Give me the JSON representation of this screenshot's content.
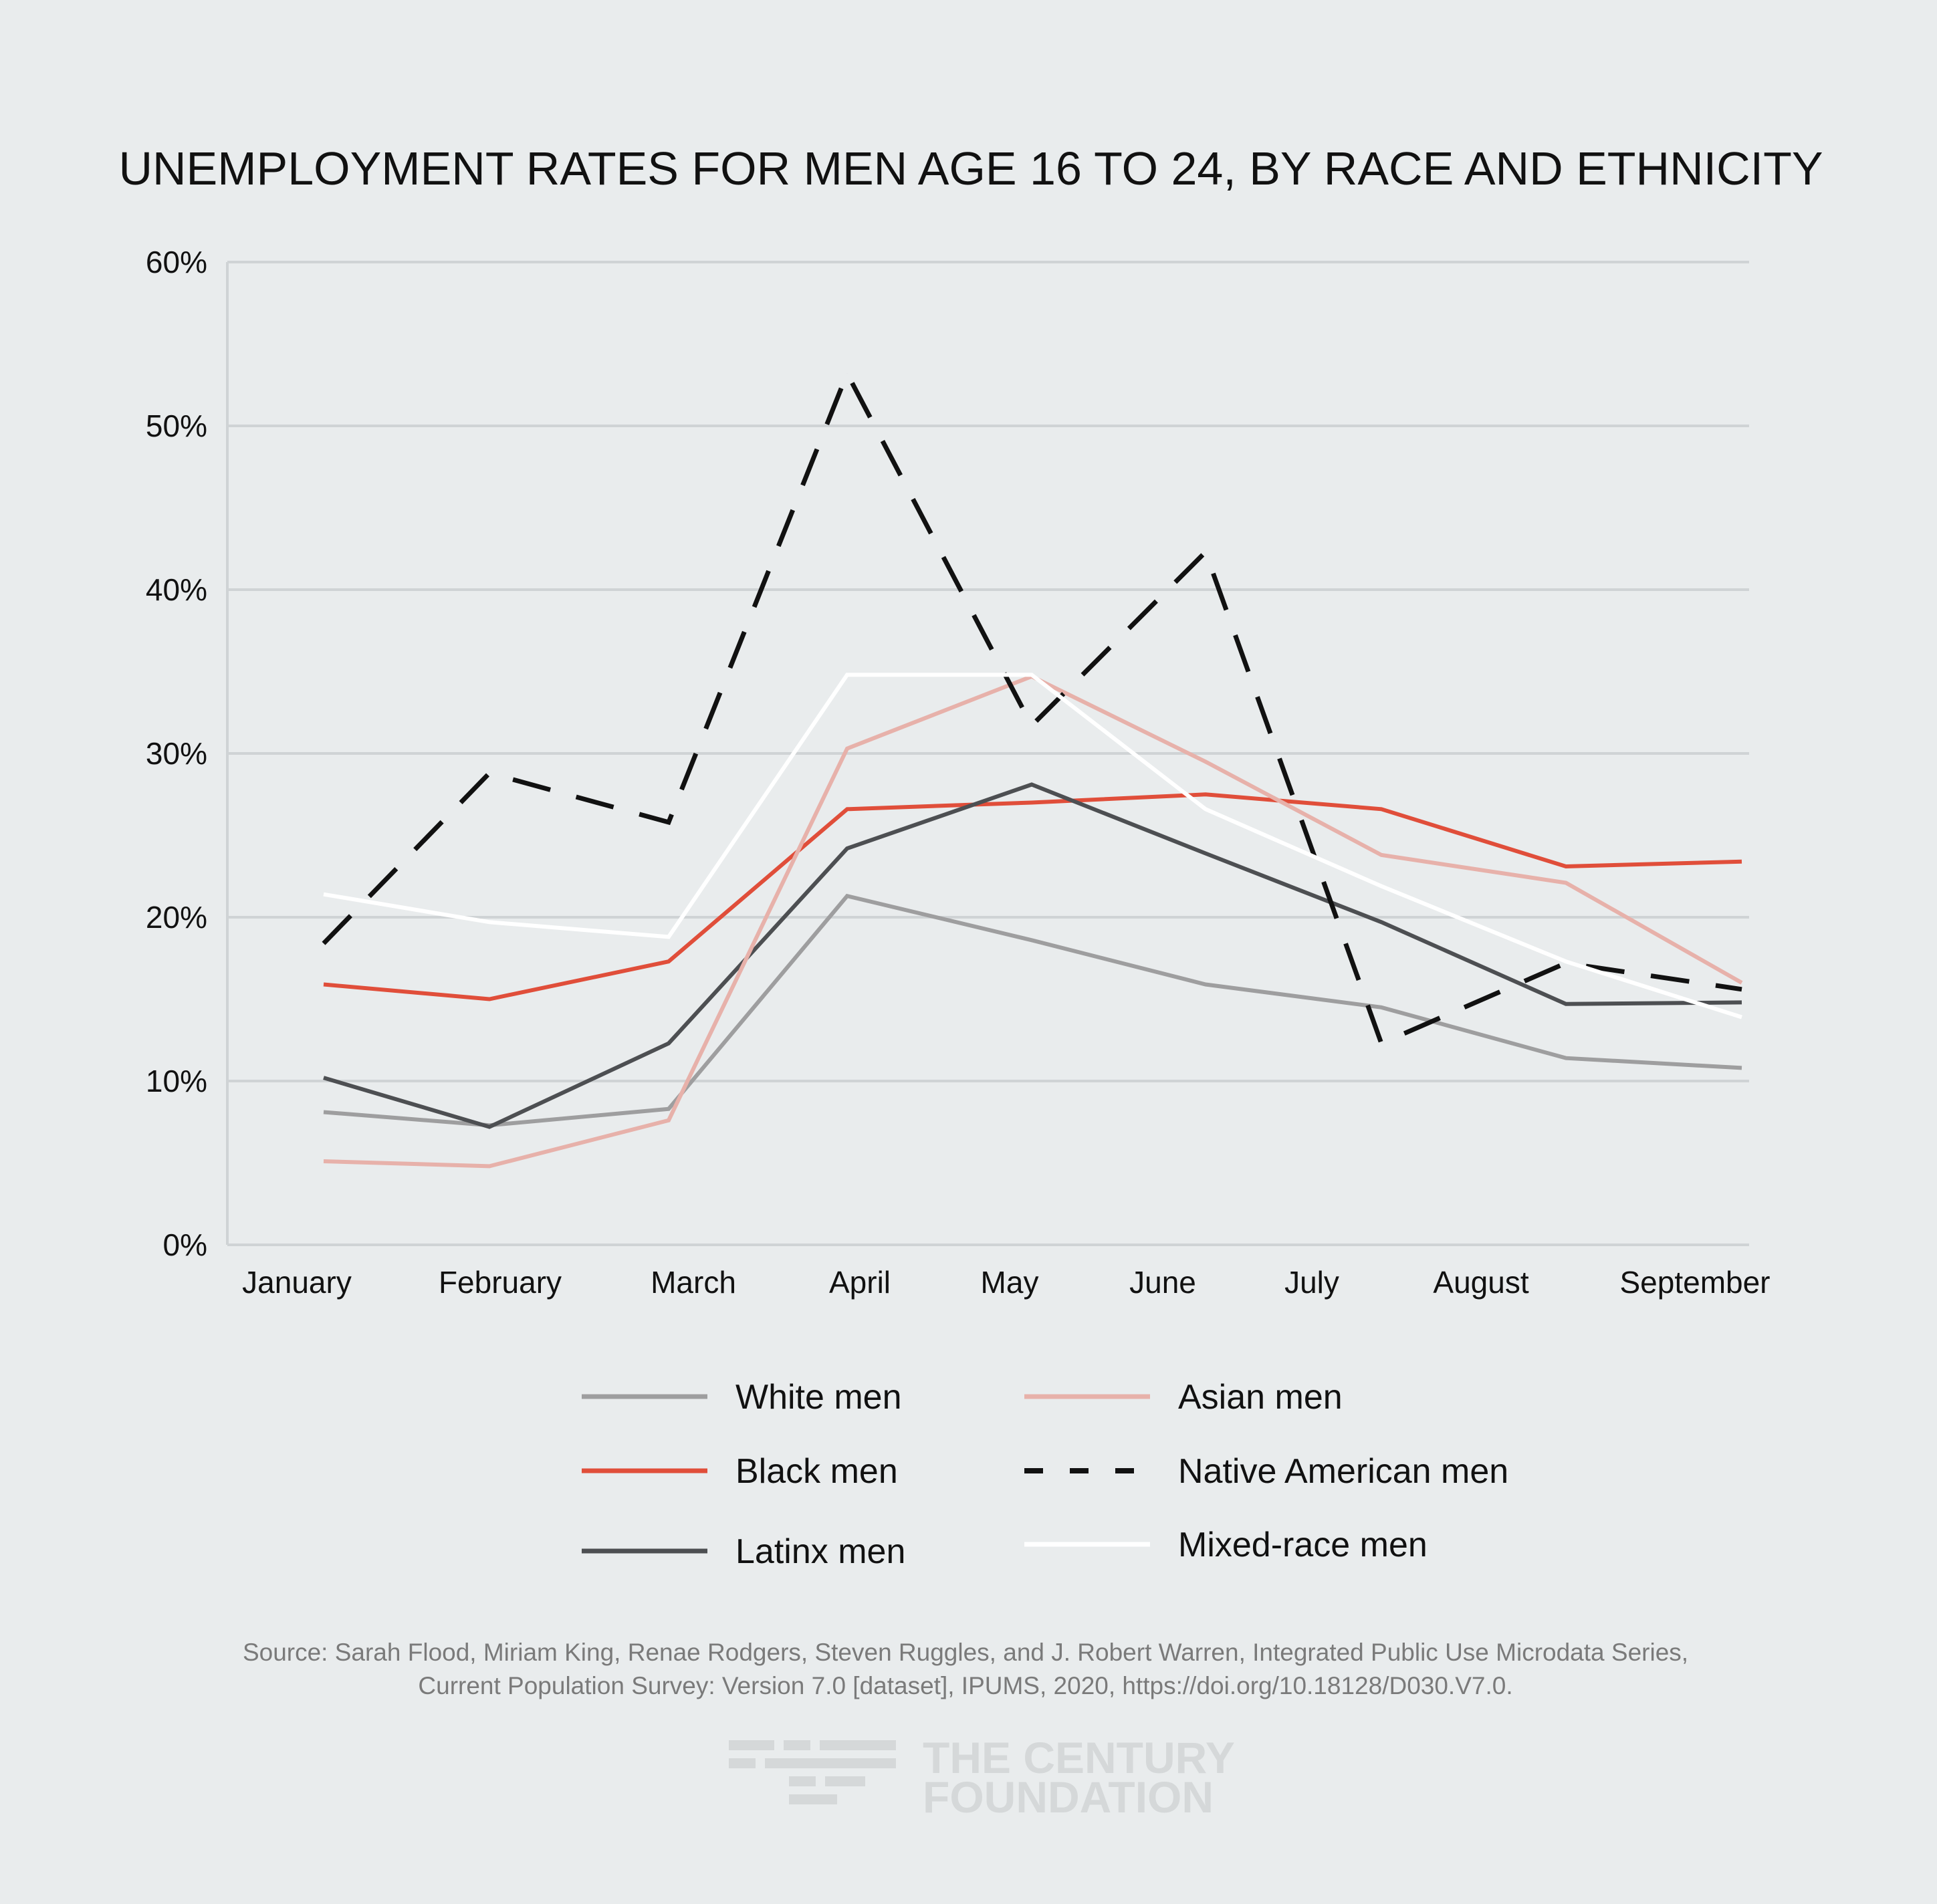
{
  "chart_data": {
    "type": "line",
    "title": "UNEMPLOYMENT RATES FOR MEN AGE 16 TO 24, BY RACE AND ETHNICITY",
    "xlabel": "",
    "ylabel": "",
    "categories": [
      "January",
      "February",
      "March",
      "April",
      "May",
      "June",
      "July",
      "August",
      "September"
    ],
    "y_ticks": [
      0,
      10,
      20,
      30,
      40,
      50,
      60
    ],
    "y_tick_labels": [
      "0%",
      "10%",
      "20%",
      "30%",
      "40%",
      "50%",
      "60%"
    ],
    "ylim": [
      0,
      60
    ],
    "grid": true,
    "legend_position": "bottom",
    "series": [
      {
        "name": "White men",
        "color": "#9e9e9f",
        "dash": false,
        "values": [
          8.1,
          7.3,
          8.3,
          21.3,
          18.6,
          15.9,
          14.5,
          11.4,
          10.8
        ]
      },
      {
        "name": "Black men",
        "color": "#e04e3a",
        "dash": false,
        "values": [
          15.9,
          15.0,
          17.3,
          26.6,
          27.0,
          27.5,
          26.6,
          23.1,
          23.4
        ]
      },
      {
        "name": "Latinx men",
        "color": "#4d4f52",
        "dash": false,
        "values": [
          10.2,
          7.2,
          12.3,
          24.2,
          28.1,
          23.9,
          19.7,
          14.7,
          14.8
        ]
      },
      {
        "name": "Asian men",
        "color": "#e7b1aa",
        "dash": false,
        "values": [
          5.1,
          4.8,
          7.6,
          30.3,
          34.7,
          29.5,
          23.8,
          22.1,
          16.0
        ]
      },
      {
        "name": "Native American men",
        "color": "#111111",
        "dash": true,
        "values": [
          18.4,
          28.8,
          25.8,
          53.2,
          31.7,
          42.3,
          12.3,
          17.2,
          15.6
        ]
      },
      {
        "name": "Mixed-race men",
        "color": "#ffffff",
        "dash": false,
        "values": [
          21.4,
          19.7,
          18.8,
          34.8,
          34.8,
          26.6,
          21.9,
          17.3,
          13.9
        ]
      }
    ]
  },
  "source": {
    "line1": "Source: Sarah Flood, Miriam King, Renae Rodgers, Steven Ruggles, and J. Robert Warren, Integrated Public Use Microdata Series,",
    "line2": "Current Population Survey: Version 7.0 [dataset], IPUMS, 2020, https://doi.org/10.18128/D030.V7.0."
  },
  "logo": {
    "line1": "THE CENTURY",
    "line2": "FOUNDATION"
  }
}
